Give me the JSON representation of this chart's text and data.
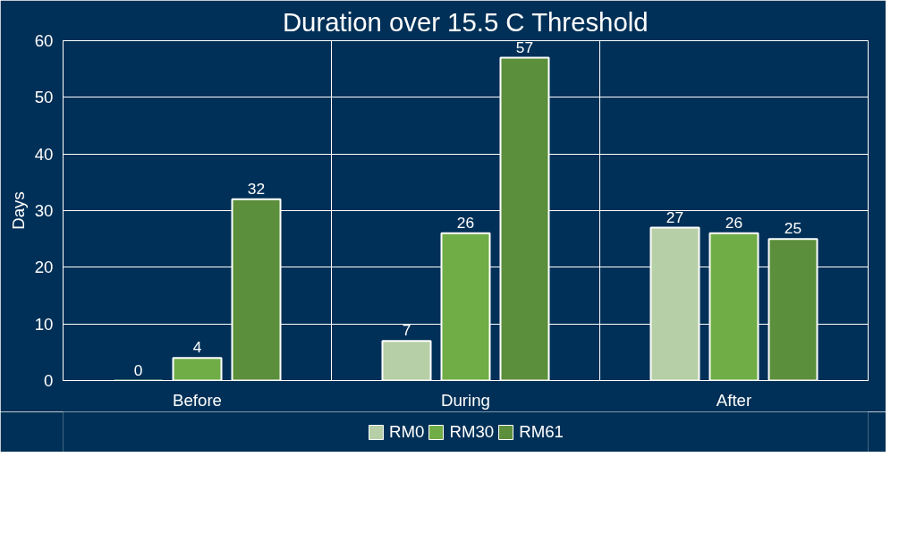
{
  "chart_data": {
    "type": "bar",
    "title": "Duration over 15.5 C Threshold",
    "ylabel": "Days",
    "categories": [
      "Before",
      "During",
      "After"
    ],
    "series": [
      {
        "name": "RM0",
        "color": "#b6cfa6",
        "values": [
          0,
          7,
          27
        ]
      },
      {
        "name": "RM30",
        "color": "#70ad47",
        "values": [
          4,
          26,
          26
        ]
      },
      {
        "name": "RM61",
        "color": "#5b8f3b",
        "values": [
          32,
          57,
          25
        ]
      }
    ],
    "ylim": [
      0,
      60
    ],
    "yticks": [
      0,
      10,
      20,
      30,
      40,
      50,
      60
    ],
    "grid": true,
    "legend": "bottom",
    "data_labels": true
  }
}
